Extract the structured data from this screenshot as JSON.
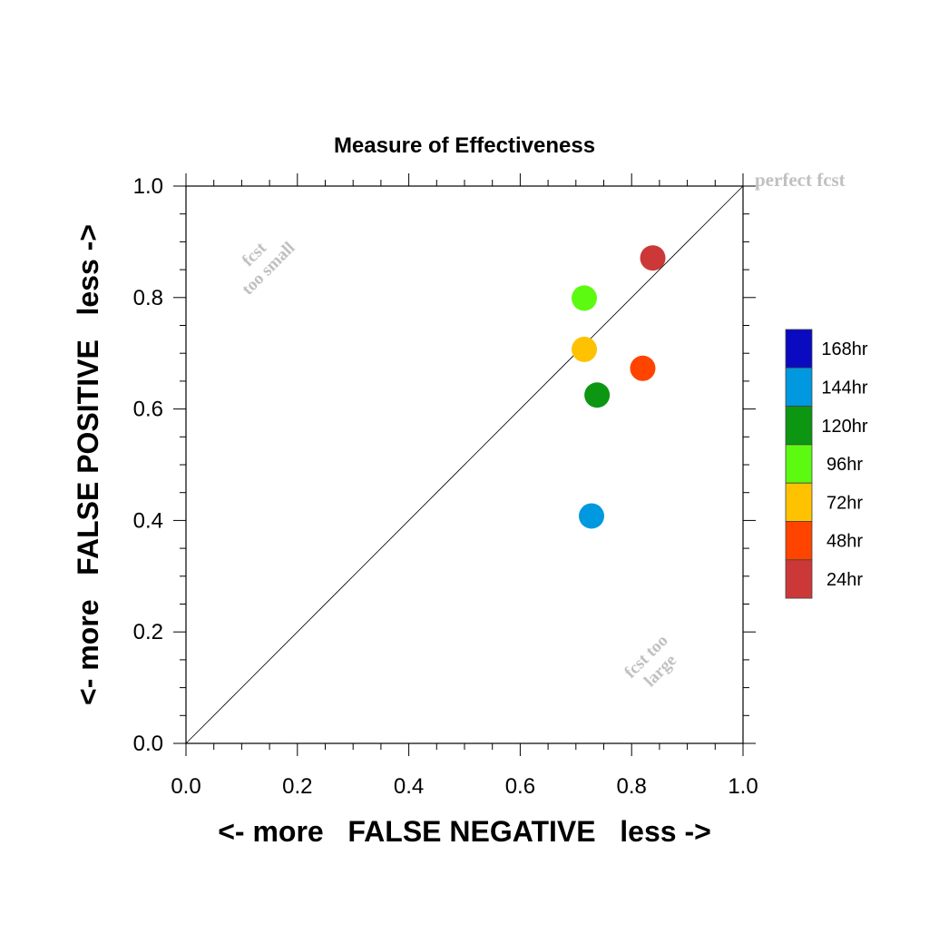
{
  "chart_data": {
    "type": "scatter",
    "title": "Measure of Effectiveness",
    "xlabel": "<- more   FALSE NEGATIVE   less ->",
    "ylabel": "<- more   FALSE POSITIVE   less ->",
    "xlim": [
      0.0,
      1.0
    ],
    "ylim": [
      0.0,
      1.0
    ],
    "x_ticks": [
      "0.0",
      "0.2",
      "0.4",
      "0.6",
      "0.8",
      "1.0"
    ],
    "y_ticks": [
      "0.0",
      "0.2",
      "0.4",
      "0.6",
      "0.8",
      "1.0"
    ],
    "reference_line": "diagonal",
    "grid": false,
    "annotations": {
      "perfect": "perfect fcst",
      "too_small_1": "fcst",
      "too_small_2": "too small",
      "too_large_1": "fcst too",
      "too_large_2": "large"
    },
    "legend": {
      "placement": "right",
      "entries": [
        {
          "label": "168hr",
          "color": "#0a0ac0"
        },
        {
          "label": "144hr",
          "color": "#0098df"
        },
        {
          "label": "120hr",
          "color": "#0c9612"
        },
        {
          "label": "96hr",
          "color": "#5cfa10"
        },
        {
          "label": "72hr",
          "color": "#ffc200"
        },
        {
          "label": "48hr",
          "color": "#ff4400"
        },
        {
          "label": "24hr",
          "color": "#cc3838"
        }
      ]
    },
    "points": [
      {
        "label": "144hr",
        "x": 0.728,
        "y": 0.408,
        "color": "#0098df"
      },
      {
        "label": "120hr",
        "x": 0.738,
        "y": 0.625,
        "color": "#0c9612"
      },
      {
        "label": "96hr",
        "x": 0.715,
        "y": 0.799,
        "color": "#5cfa10"
      },
      {
        "label": "72hr",
        "x": 0.715,
        "y": 0.707,
        "color": "#ffc200"
      },
      {
        "label": "48hr",
        "x": 0.82,
        "y": 0.673,
        "color": "#ff4400"
      },
      {
        "label": "24hr",
        "x": 0.838,
        "y": 0.871,
        "color": "#cc3838"
      }
    ]
  }
}
